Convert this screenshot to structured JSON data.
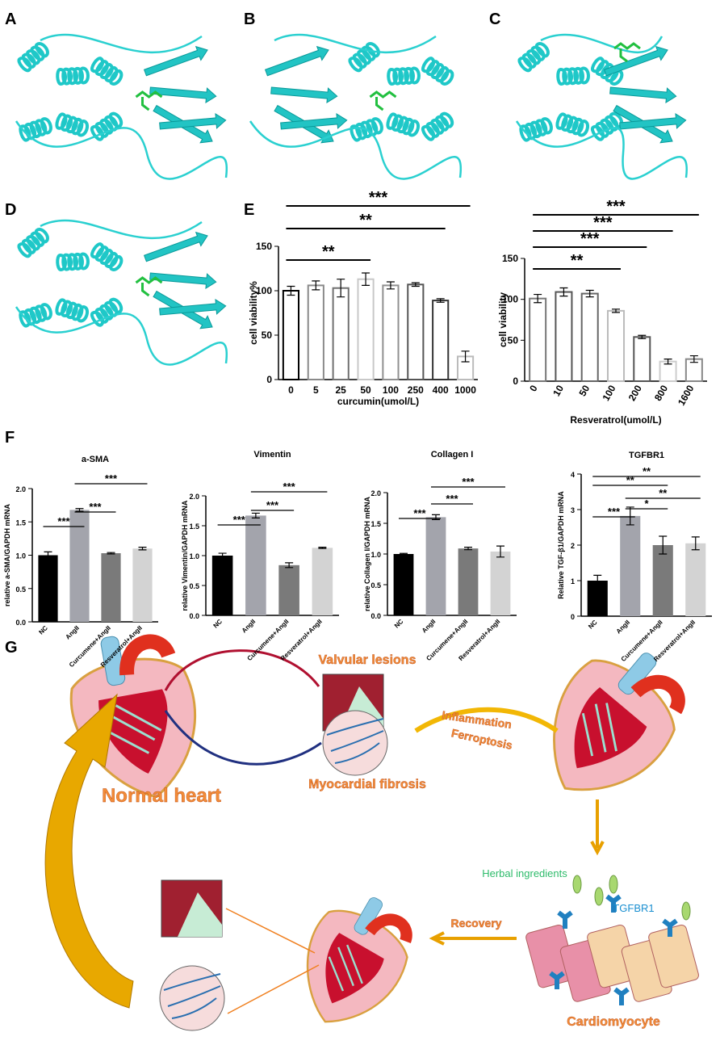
{
  "panel_labels": [
    "A",
    "B",
    "C",
    "D",
    "E",
    "F",
    "G"
  ],
  "chart_data": [
    {
      "type": "bar",
      "ylabel": "cell viability%",
      "xlabel": "curcumin(umol/L)",
      "categories": [
        "0",
        "5",
        "25",
        "50",
        "100",
        "250",
        "400",
        "1000"
      ],
      "values": [
        100,
        106,
        103,
        113,
        106,
        107,
        89,
        26
      ],
      "errors": [
        5,
        5,
        10,
        7,
        4,
        2,
        2,
        6
      ],
      "colors": [
        "#000000",
        "#8a8a8a",
        "#707070",
        "#c8c8c8",
        "#909090",
        "#555555",
        "#333333",
        "#bbbbbb"
      ],
      "filled": false,
      "ylim": [
        0,
        150
      ],
      "yticks": [
        0,
        50,
        100,
        150
      ],
      "comparisons": [
        {
          "from": 0,
          "to": 3,
          "label": "**"
        },
        {
          "from": 0,
          "to": 6,
          "label": "**"
        },
        {
          "from": 0,
          "to": 7,
          "label": "***"
        }
      ]
    },
    {
      "type": "bar",
      "ylabel": "cell viability",
      "xlabel": "Resveratrol(umol/L)",
      "categories": [
        "0",
        "10",
        "50",
        "100",
        "200",
        "800",
        "1600"
      ],
      "values": [
        101,
        109,
        107,
        86,
        54,
        24,
        27
      ],
      "errors": [
        5,
        5,
        4,
        2,
        2,
        3,
        4
      ],
      "colors": [
        "#777777",
        "#555555",
        "#666666",
        "#bbbbbb",
        "#555555",
        "#cccccc",
        "#888888"
      ],
      "filled": false,
      "ylim": [
        0,
        150
      ],
      "yticks": [
        0,
        50,
        100,
        150
      ],
      "comparisons": [
        {
          "from": 0,
          "to": 3,
          "label": "**"
        },
        {
          "from": 0,
          "to": 4,
          "label": "***"
        },
        {
          "from": 0,
          "to": 5,
          "label": "***"
        },
        {
          "from": 0,
          "to": 6,
          "label": "***"
        }
      ]
    },
    {
      "type": "bar",
      "title": "a-SMA",
      "ylabel": "relative a-SMA/GAPDH mRNA",
      "categories": [
        "NC",
        "AngII",
        "Curcumene+AngII",
        "Resveratrol+AngII"
      ],
      "values": [
        1.0,
        1.68,
        1.03,
        1.1
      ],
      "errors": [
        0.05,
        0.02,
        0.01,
        0.02
      ],
      "colors": [
        "#000000",
        "#a3a4ac",
        "#7a7a7a",
        "#d3d3d3"
      ],
      "filled": true,
      "ylim": [
        0,
        2
      ],
      "yticks": [
        {
          "value": 0,
          "label": "0.0"
        },
        {
          "value": 0.5,
          "label": "0.5"
        },
        {
          "value": 1,
          "label": "1.0"
        },
        {
          "value": 1.5,
          "label": "1.5"
        },
        {
          "value": 2,
          "label": "2.0"
        }
      ],
      "comparisons": [
        {
          "from": 0,
          "to": 1,
          "label": "***"
        },
        {
          "from": 1,
          "to": 2,
          "label": "***"
        },
        {
          "from": 1,
          "to": 3,
          "label": "***"
        }
      ]
    },
    {
      "type": "bar",
      "title": "Vimentin",
      "ylabel": "relative Vimentin/GAPDH mRNA",
      "categories": [
        "NC",
        "AngII",
        "Curcumene+AngII",
        "Resveratrol+AngII"
      ],
      "values": [
        1.0,
        1.67,
        0.84,
        1.13
      ],
      "errors": [
        0.04,
        0.04,
        0.04,
        0.01
      ],
      "colors": [
        "#000000",
        "#a3a4ac",
        "#7a7a7a",
        "#d3d3d3"
      ],
      "filled": true,
      "ylim": [
        0,
        2
      ],
      "yticks": [
        {
          "value": 0,
          "label": "0.0"
        },
        {
          "value": 0.5,
          "label": "0.5"
        },
        {
          "value": 1,
          "label": "1.0"
        },
        {
          "value": 1.5,
          "label": "1.5"
        },
        {
          "value": 2,
          "label": "2.0"
        }
      ],
      "comparisons": [
        {
          "from": 0,
          "to": 1,
          "label": "***"
        },
        {
          "from": 1,
          "to": 2,
          "label": "***"
        },
        {
          "from": 1,
          "to": 3,
          "label": "***"
        }
      ]
    },
    {
      "type": "bar",
      "title": "Collagen I",
      "ylabel": "relative Collagen I/GAPDH mRNA",
      "categories": [
        "NC",
        "AngII",
        "Curcumene+AngII",
        "Resveratrol+AngII"
      ],
      "values": [
        1.0,
        1.6,
        1.09,
        1.04
      ],
      "errors": [
        0.01,
        0.04,
        0.02,
        0.09
      ],
      "colors": [
        "#000000",
        "#a3a4ac",
        "#7a7a7a",
        "#d3d3d3"
      ],
      "filled": true,
      "ylim": [
        0,
        2
      ],
      "yticks": [
        {
          "value": 0,
          "label": "0.0"
        },
        {
          "value": 0.5,
          "label": "0.5"
        },
        {
          "value": 1,
          "label": "1.0"
        },
        {
          "value": 1.5,
          "label": "1.5"
        },
        {
          "value": 2,
          "label": "2.0"
        }
      ],
      "comparisons": [
        {
          "from": 0,
          "to": 1,
          "label": "***"
        },
        {
          "from": 1,
          "to": 2,
          "label": "***"
        },
        {
          "from": 1,
          "to": 3,
          "label": "***"
        }
      ]
    },
    {
      "type": "bar",
      "title": "TGFBR1",
      "ylabel": "Relative TGF-β1/GAPDH mRNA",
      "categories": [
        "NC",
        "AngII",
        "Curcumene+AngII",
        "Resveratrol+AngII"
      ],
      "values": [
        1.0,
        2.82,
        2.0,
        2.05
      ],
      "errors": [
        0.15,
        0.25,
        0.25,
        0.18
      ],
      "colors": [
        "#000000",
        "#a3a4ac",
        "#7a7a7a",
        "#d3d3d3"
      ],
      "filled": true,
      "ylim": [
        0,
        4
      ],
      "yticks": [
        0,
        1,
        2,
        3,
        4
      ],
      "comparisons": [
        {
          "from": 0,
          "to": 1,
          "label": "***"
        },
        {
          "from": 1,
          "to": 2,
          "label": "*"
        },
        {
          "from": 1,
          "to": 3,
          "label": "**"
        },
        {
          "from": 0,
          "to": 2,
          "label": "**"
        },
        {
          "from": 0,
          "to": 3,
          "label": "**"
        }
      ]
    }
  ],
  "diagram": {
    "normal_heart": "Normal heart",
    "valvular_lesions": "Valvular lesions",
    "myocardial_fibrosis": "Myocardial fibrosis",
    "inflammation": "Inflammation",
    "ferroptosis": "Ferroptosis",
    "herbal_ingredients": "Herbal ingredients",
    "receptor": "TGFBR1",
    "recovery": "Recovery",
    "cardiomyocyte": "Cardiomyocyte"
  }
}
